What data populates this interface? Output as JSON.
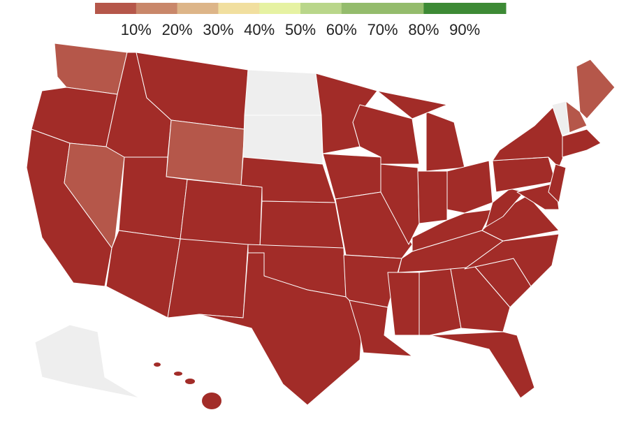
{
  "legend": {
    "colors": [
      "#b5574a",
      "#c9876a",
      "#ddb588",
      "#f1df9f",
      "#e6f2a2",
      "#b9d68a",
      "#94bc6c",
      "#94bc6c",
      "#3d8a35",
      "#3d8a35"
    ],
    "labels": [
      "10%",
      "20%",
      "30%",
      "40%",
      "50%",
      "60%",
      "70%",
      "80%",
      "90%"
    ]
  }
}
